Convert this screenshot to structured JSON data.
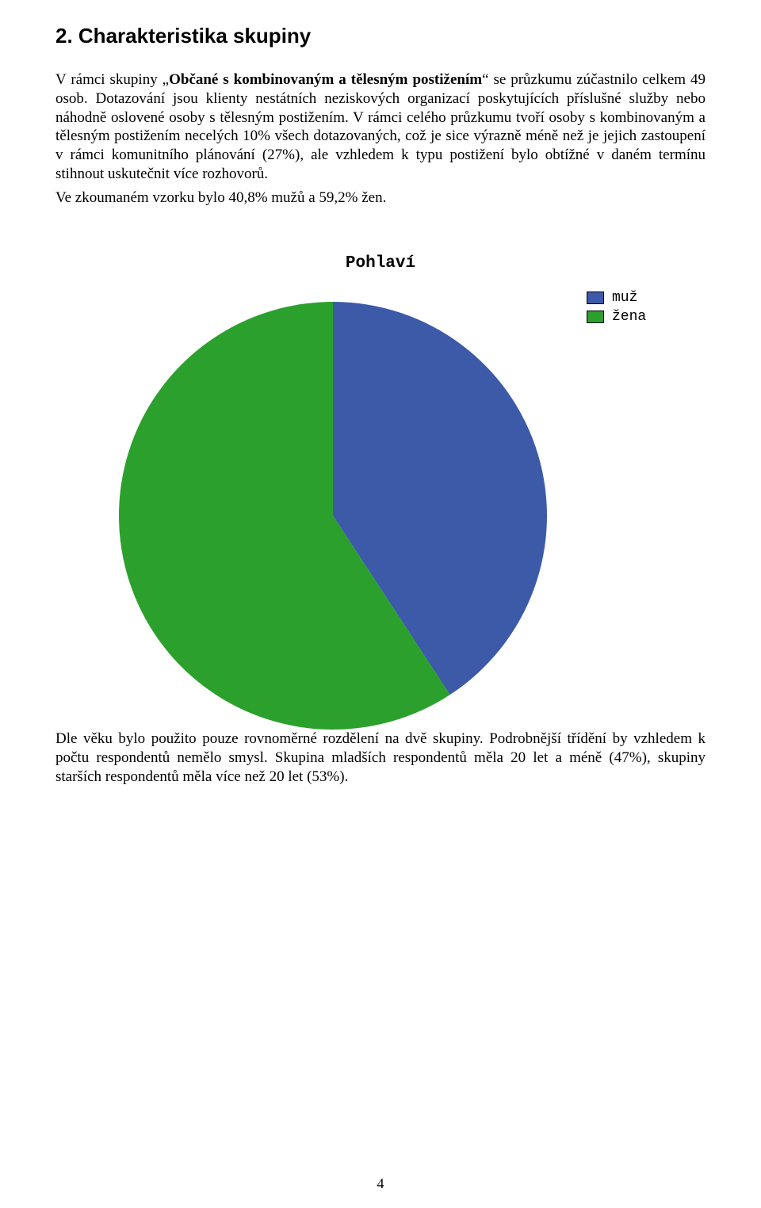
{
  "heading": "2. Charakteristika skupiny",
  "paragraphs": {
    "p1_prefix": "V rámci skupiny „",
    "p1_bold": "Občané s kombinovaným a tělesným postižením",
    "p1_suffix": "“ se průzkumu zúčastnilo celkem 49 osob. Dotazování jsou klienty nestátních neziskových organizací poskytujících příslušné služby nebo náhodně oslovené osoby s tělesným postižením. V rámci celého průzkumu tvoří osoby s kombinovaným a tělesným postižením necelých 10% všech dotazovaných, což je sice výrazně méně než je jejich zastoupení v rámci komunitního plánování (27%), ale vzhledem k typu postižení bylo obtížné v daném termínu stihnout uskutečnit více rozhovorů.",
    "p2": "Ve zkoumaném vzorku bylo 40,8% mužů a 59,2% žen.",
    "p3": "Dle věku bylo použito pouze rovnoměrné rozdělení na dvě skupiny. Podrobnější třídění by vzhledem k počtu respondentů nemělo smysl. Skupina mladších respondentů měla 20 let a méně (47%), skupiny starších respondentů měla více než 20 let (53%)."
  },
  "chart": {
    "type": "pie",
    "title": "Pohlaví",
    "background_color": "#ffffff",
    "diameter": 540,
    "start_angle_deg": -90,
    "slices": [
      {
        "label": "muž",
        "value": 40.8,
        "color": "#3c5aa8"
      },
      {
        "label": "žena",
        "value": 59.2,
        "color": "#2ca02c"
      }
    ],
    "legend_position": "right-top",
    "legend_font": "monospace",
    "legend_fontsize": 18,
    "title_fontsize": 21
  },
  "page_number": "4"
}
